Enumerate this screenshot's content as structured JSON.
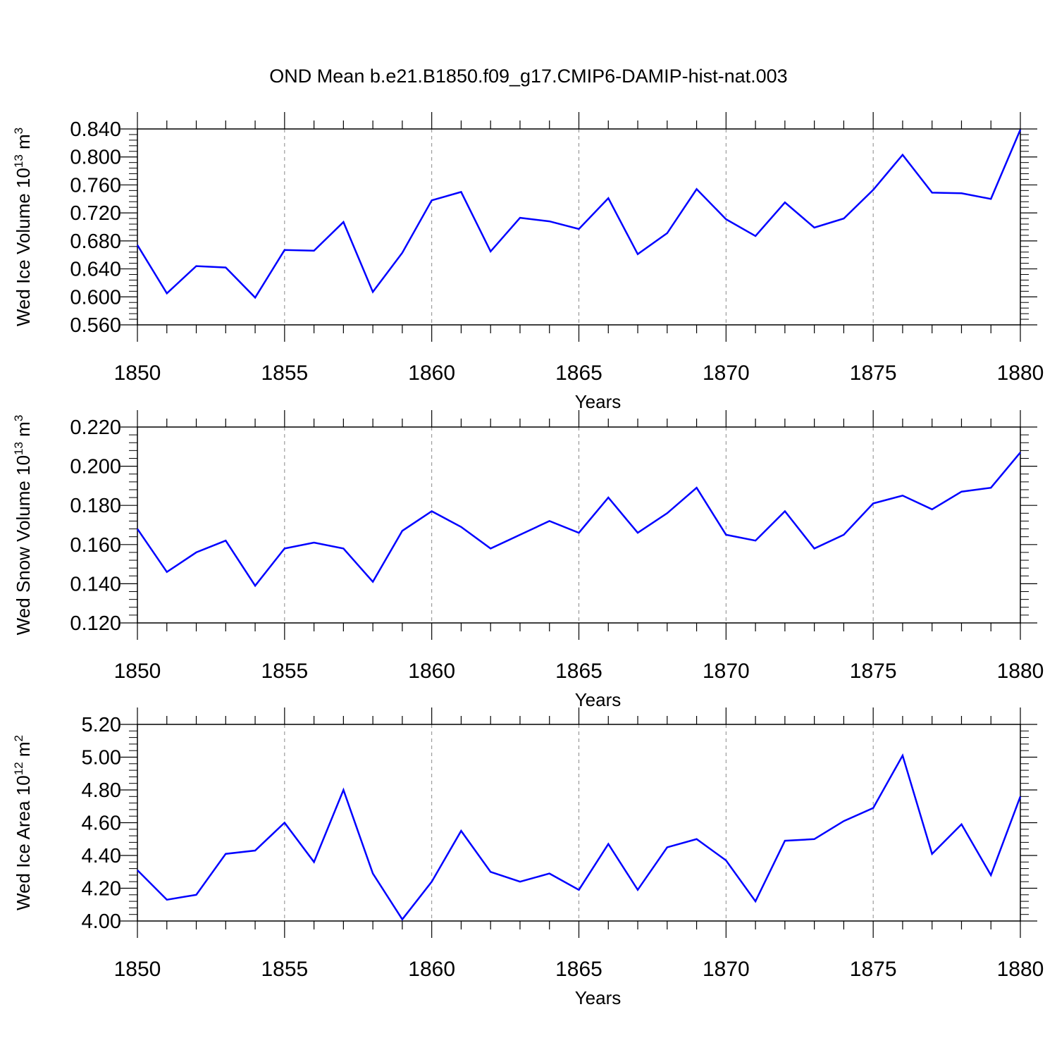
{
  "title": "OND Mean b.e21.B1850.f09_g17.CMIP6-DAMIP-hist-nat.003",
  "colors": {
    "series": "#0000ff",
    "axis": "#000000",
    "grid": "#888888"
  },
  "chart_data": [
    {
      "type": "line",
      "ylabel": "Wed Ice Volume 10",
      "ylabel_sup": "13",
      "ylabel_unit": " m",
      "ylabel_unit_sup": "3",
      "xlabel": "Years",
      "xlim": [
        1850,
        1880
      ],
      "ylim": [
        0.56,
        0.84
      ],
      "yticks": [
        0.56,
        0.6,
        0.64,
        0.68,
        0.72,
        0.76,
        0.8,
        0.84
      ],
      "ytick_labels": [
        "0.560",
        "0.600",
        "0.640",
        "0.680",
        "0.720",
        "0.760",
        "0.800",
        "0.840"
      ],
      "xticks": [
        1850,
        1855,
        1860,
        1865,
        1870,
        1875,
        1880
      ],
      "xtick_labels": [
        "1850",
        "1855",
        "1860",
        "1865",
        "1870",
        "1875",
        "1880"
      ],
      "grid": "vertical dashed at major x ticks",
      "x": [
        1850,
        1851,
        1852,
        1853,
        1854,
        1855,
        1856,
        1857,
        1858,
        1859,
        1860,
        1861,
        1862,
        1863,
        1864,
        1865,
        1866,
        1867,
        1868,
        1869,
        1870,
        1871,
        1872,
        1873,
        1874,
        1875,
        1876,
        1877,
        1878,
        1879,
        1880
      ],
      "values": [
        0.674,
        0.605,
        0.644,
        0.642,
        0.599,
        0.667,
        0.666,
        0.707,
        0.607,
        0.663,
        0.738,
        0.75,
        0.665,
        0.713,
        0.708,
        0.697,
        0.741,
        0.661,
        0.691,
        0.754,
        0.711,
        0.687,
        0.735,
        0.699,
        0.712,
        0.753,
        0.803,
        0.749,
        0.748,
        0.74,
        0.839
      ]
    },
    {
      "type": "line",
      "ylabel": "Wed Snow Volume 10",
      "ylabel_sup": "13",
      "ylabel_unit": " m",
      "ylabel_unit_sup": "3",
      "xlabel": "Years",
      "xlim": [
        1850,
        1880
      ],
      "ylim": [
        0.12,
        0.22
      ],
      "yticks": [
        0.12,
        0.14,
        0.16,
        0.18,
        0.2,
        0.22
      ],
      "ytick_labels": [
        "0.120",
        "0.140",
        "0.160",
        "0.180",
        "0.200",
        "0.220"
      ],
      "xticks": [
        1850,
        1855,
        1860,
        1865,
        1870,
        1875,
        1880
      ],
      "xtick_labels": [
        "1850",
        "1855",
        "1860",
        "1865",
        "1870",
        "1875",
        "1880"
      ],
      "grid": "vertical dashed at major x ticks",
      "x": [
        1850,
        1851,
        1852,
        1853,
        1854,
        1855,
        1856,
        1857,
        1858,
        1859,
        1860,
        1861,
        1862,
        1863,
        1864,
        1865,
        1866,
        1867,
        1868,
        1869,
        1870,
        1871,
        1872,
        1873,
        1874,
        1875,
        1876,
        1877,
        1878,
        1879,
        1880
      ],
      "values": [
        0.168,
        0.146,
        0.156,
        0.162,
        0.139,
        0.158,
        0.161,
        0.158,
        0.141,
        0.167,
        0.177,
        0.169,
        0.158,
        0.165,
        0.172,
        0.166,
        0.184,
        0.166,
        0.176,
        0.189,
        0.165,
        0.162,
        0.177,
        0.158,
        0.165,
        0.181,
        0.185,
        0.178,
        0.187,
        0.189,
        0.207
      ]
    },
    {
      "type": "line",
      "ylabel": "Wed Ice Area 10",
      "ylabel_sup": "12",
      "ylabel_unit": " m",
      "ylabel_unit_sup": "2",
      "xlabel": "Years",
      "xlim": [
        1850,
        1880
      ],
      "ylim": [
        4.0,
        5.2
      ],
      "yticks": [
        4.0,
        4.2,
        4.4,
        4.6,
        4.8,
        5.0,
        5.2
      ],
      "ytick_labels": [
        "4.00",
        "4.20",
        "4.40",
        "4.60",
        "4.80",
        "5.00",
        "5.20"
      ],
      "xticks": [
        1850,
        1855,
        1860,
        1865,
        1870,
        1875,
        1880
      ],
      "xtick_labels": [
        "1850",
        "1855",
        "1860",
        "1865",
        "1870",
        "1875",
        "1880"
      ],
      "grid": "vertical dashed at major x ticks",
      "x": [
        1850,
        1851,
        1852,
        1853,
        1854,
        1855,
        1856,
        1857,
        1858,
        1859,
        1860,
        1861,
        1862,
        1863,
        1864,
        1865,
        1866,
        1867,
        1868,
        1869,
        1870,
        1871,
        1872,
        1873,
        1874,
        1875,
        1876,
        1877,
        1878,
        1879,
        1880
      ],
      "values": [
        4.31,
        4.13,
        4.16,
        4.41,
        4.43,
        4.6,
        4.36,
        4.8,
        4.29,
        4.01,
        4.24,
        4.55,
        4.3,
        4.24,
        4.29,
        4.19,
        4.47,
        4.19,
        4.45,
        4.5,
        4.37,
        4.12,
        4.49,
        4.5,
        4.61,
        4.69,
        5.01,
        4.41,
        4.59,
        4.28,
        4.76
      ]
    }
  ]
}
